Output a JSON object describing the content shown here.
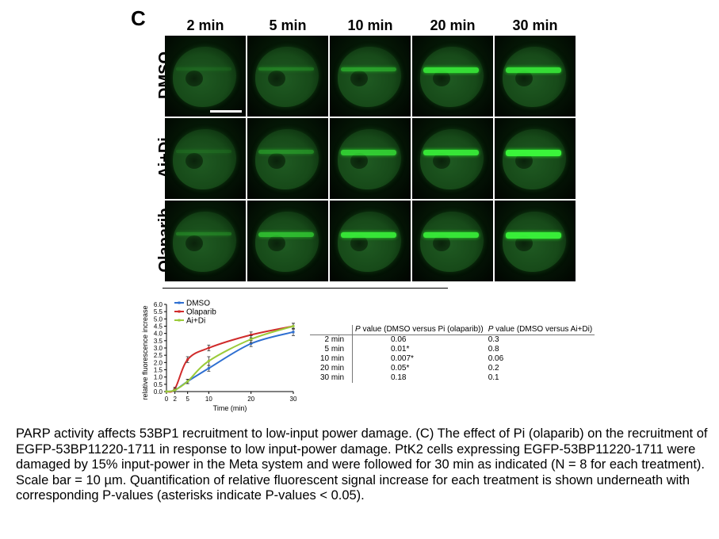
{
  "figure": {
    "panel_label": "C",
    "columns": [
      "2 min",
      "5 min",
      "10 min",
      "20 min",
      "30 min"
    ],
    "rows": [
      {
        "label": "DMSO",
        "stripe": [
          0.1,
          0.25,
          0.45,
          0.8,
          0.8
        ]
      },
      {
        "label": "Ai+Di",
        "stripe": [
          0.12,
          0.35,
          0.7,
          0.85,
          0.95
        ]
      },
      {
        "label": "Olaparib",
        "stripe": [
          0.25,
          0.6,
          0.85,
          0.85,
          0.9
        ]
      }
    ]
  },
  "chart_data": {
    "type": "line",
    "xlabel": "Time (min)",
    "ylabel": "relative fluorescence increase",
    "x": [
      0,
      2,
      5,
      10,
      20,
      30
    ],
    "xticks": [
      0,
      2,
      5,
      10,
      20,
      30
    ],
    "xlim": [
      0,
      30
    ],
    "yticks": [
      "0.0",
      "0.5",
      "1.0",
      "1.5",
      "2.0",
      "2.5",
      "3.0",
      "3.5",
      "4.0",
      "4.5",
      "5.0",
      "5.5",
      "6.0"
    ],
    "ylim": [
      0,
      6
    ],
    "legend_position": "top-left",
    "series": [
      {
        "name": "DMSO",
        "color": "#2e6fd1",
        "values": [
          0,
          0.1,
          0.7,
          1.6,
          3.3,
          4.1
        ],
        "errors": [
          0,
          0.1,
          0.15,
          0.2,
          0.2,
          0.25
        ]
      },
      {
        "name": "Olaparib",
        "color": "#d02b2b",
        "values": [
          0,
          0.2,
          2.2,
          3.0,
          3.9,
          4.5
        ],
        "errors": [
          0,
          0.1,
          0.2,
          0.2,
          0.2,
          0.2
        ]
      },
      {
        "name": "Ai+Di",
        "color": "#9bcb3a",
        "values": [
          0,
          0.1,
          0.7,
          2.1,
          3.6,
          4.5
        ],
        "errors": [
          0,
          0.1,
          0.15,
          0.3,
          0.25,
          0.2
        ]
      }
    ]
  },
  "pvalue_table": {
    "headers": [
      "",
      "P value (DMSO versus Pi (olaparib))",
      "P value (DMSO versus Ai+Di)"
    ],
    "rows": [
      [
        "2 min",
        "0.06",
        "0.3"
      ],
      [
        "5 min",
        "0.01*",
        "0.8"
      ],
      [
        "10 min",
        "0.007*",
        "0.06"
      ],
      [
        "20 min",
        "0.05*",
        "0.2"
      ],
      [
        "30 min",
        "0.18",
        "0.1"
      ]
    ]
  },
  "caption": "PARP activity affects 53BP1 recruitment to low-input power damage. (C) The effect of Pi (olaparib) on the recruitment of EGFP-53BP11220-1711 in response to low input-power damage. PtK2 cells expressing EGFP-53BP11220-1711 were damaged by 15% input-power in the Meta system and were followed for 30 min as indicated (N = 8 for each treatment). Scale bar = 10 µm. Quantification of relative fluorescent signal increase for each treatment is shown underneath with corresponding P-values (asterisks indicate P-values < 0.05)."
}
